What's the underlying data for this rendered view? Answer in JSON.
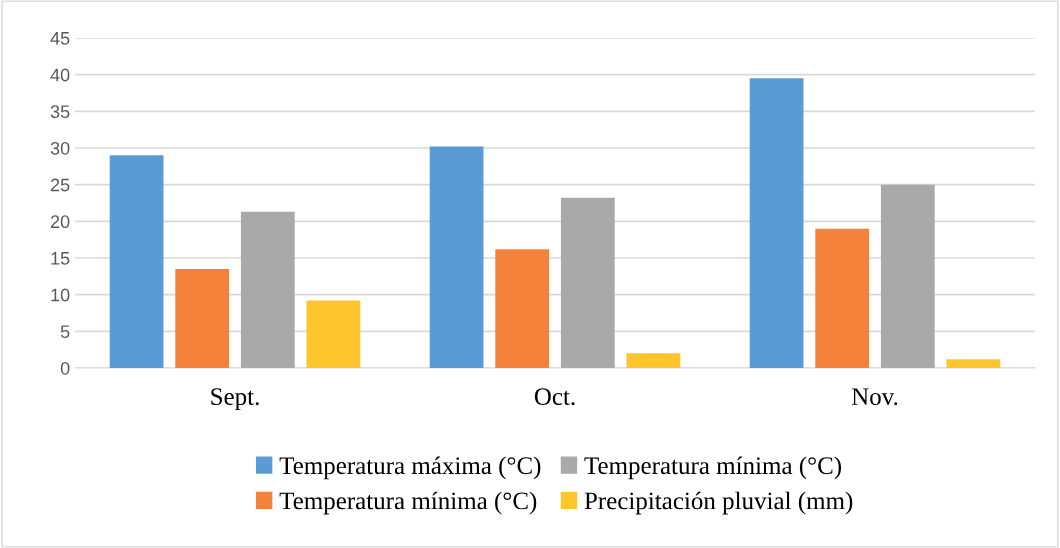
{
  "chart_data": {
    "type": "bar",
    "categories": [
      "Sept.",
      "Oct.",
      "Nov."
    ],
    "series": [
      {
        "name": "Temperatura máxima (°C)",
        "color": "#5b9bd5",
        "values": [
          29.0,
          30.2,
          39.5
        ]
      },
      {
        "name": "Temperatura mínima (°C)",
        "color": "#f4823a",
        "values": [
          13.5,
          16.2,
          19.0
        ]
      },
      {
        "name": "Temperatura mínima (°C)",
        "color": "#a9a9a9",
        "values": [
          21.3,
          23.2,
          25.0
        ]
      },
      {
        "name": "Precipitación pluvial (mm)",
        "color": "#ffc52e",
        "values": [
          9.2,
          2.0,
          1.2
        ]
      }
    ],
    "ylim": [
      0,
      45
    ],
    "yticks": [
      0,
      5,
      10,
      15,
      20,
      25,
      30,
      35,
      40,
      45
    ],
    "grid": "y",
    "legend": "bottom"
  }
}
